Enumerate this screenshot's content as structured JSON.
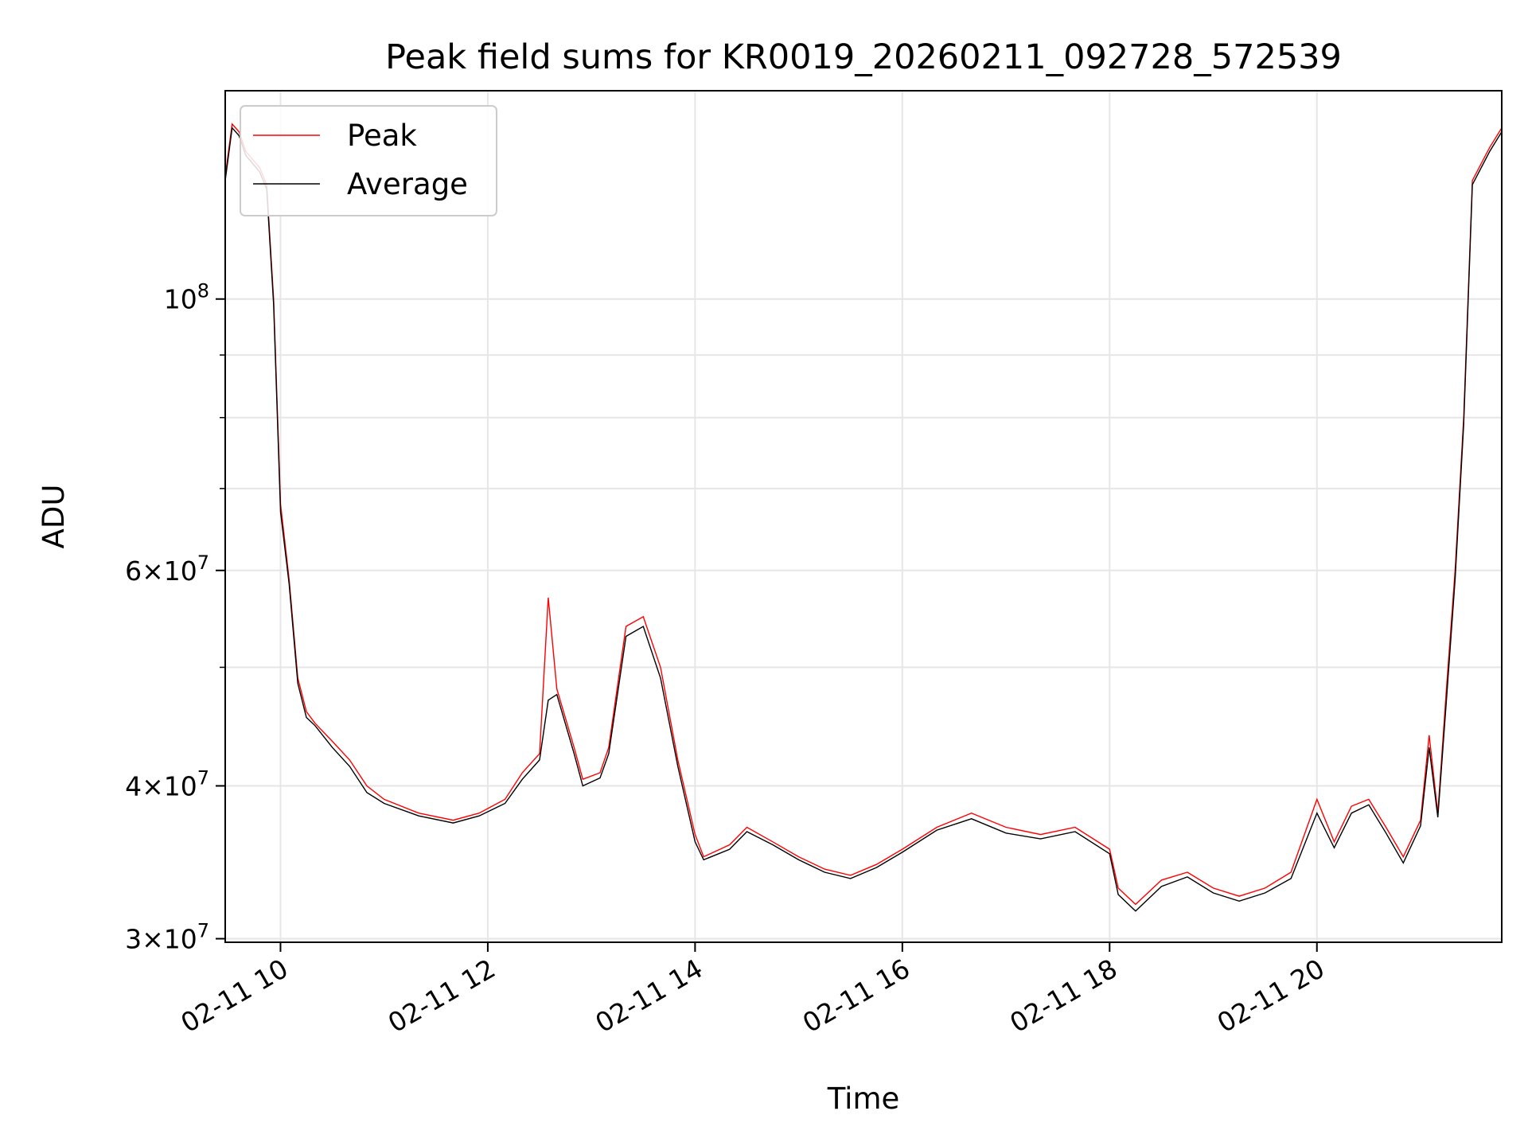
{
  "chart_data": {
    "type": "line",
    "title": "Peak field sums for KR0019_20260211_092728_572539",
    "xlabel": "Time",
    "ylabel": "ADU",
    "yscale": "log",
    "ylim": [
      29800000,
      148000000
    ],
    "xlim": [
      "02-11 09:28",
      "02-11 21:47"
    ],
    "grid": true,
    "legend_position": "top-left",
    "x_ticks": [
      "02-11 10",
      "02-11 12",
      "02-11 14",
      "02-11 16",
      "02-11 18",
      "02-11 20"
    ],
    "y_ticks": [
      {
        "value": 30000000,
        "mantissa": "3",
        "exponent": "7"
      },
      {
        "value": 40000000,
        "mantissa": "4",
        "exponent": "7"
      },
      {
        "value": 60000000,
        "mantissa": "6",
        "exponent": "7"
      },
      {
        "value": 100000000,
        "mantissa": "",
        "exponent": "8"
      }
    ],
    "y_minor_ticks": [
      50000000,
      70000000,
      80000000,
      90000000
    ],
    "series": [
      {
        "name": "Peak",
        "color": "#ff0000"
      },
      {
        "name": "Average",
        "color": "#000000"
      }
    ],
    "x": [
      "09:28",
      "09:32",
      "09:36",
      "09:40",
      "09:44",
      "09:48",
      "09:52",
      "09:56",
      "10:00",
      "10:05",
      "10:10",
      "10:15",
      "10:20",
      "10:30",
      "10:40",
      "10:50",
      "11:00",
      "11:20",
      "11:40",
      "11:55",
      "12:10",
      "12:20",
      "12:30",
      "12:35",
      "12:40",
      "12:50",
      "12:55",
      "13:05",
      "13:10",
      "13:20",
      "13:30",
      "13:40",
      "13:50",
      "14:00",
      "14:05",
      "14:20",
      "14:30",
      "14:45",
      "15:00",
      "15:15",
      "15:30",
      "15:45",
      "16:00",
      "16:20",
      "16:40",
      "17:00",
      "17:20",
      "17:40",
      "18:00",
      "18:05",
      "18:15",
      "18:30",
      "18:45",
      "19:00",
      "19:15",
      "19:30",
      "19:45",
      "20:00",
      "20:10",
      "20:20",
      "20:30",
      "20:40",
      "20:50",
      "21:00",
      "21:05",
      "21:10",
      "21:15",
      "21:20",
      "21:25",
      "21:30",
      "21:40",
      "21:47"
    ],
    "peak_values": [
      126000000,
      139000000,
      137000000,
      132000000,
      130000000,
      128000000,
      124000000,
      100000000,
      68000000,
      59000000,
      49000000,
      46000000,
      45000000,
      43500000,
      42000000,
      40000000,
      39000000,
      38000000,
      37500000,
      38000000,
      39000000,
      41000000,
      42500000,
      57000000,
      48000000,
      43000000,
      40500000,
      41000000,
      43000000,
      54000000,
      55000000,
      50000000,
      42000000,
      36500000,
      35000000,
      35800000,
      37000000,
      36000000,
      35000000,
      34200000,
      33800000,
      34500000,
      35500000,
      37000000,
      38000000,
      37000000,
      36500000,
      37000000,
      35500000,
      33000000,
      32000000,
      33500000,
      34000000,
      33000000,
      32500000,
      33000000,
      34000000,
      39000000,
      36000000,
      38500000,
      39000000,
      37000000,
      35000000,
      37500000,
      44000000,
      38000000,
      48000000,
      60000000,
      80000000,
      125000000,
      133000000,
      138000000
    ],
    "average_values": [
      125000000,
      138000000,
      136000000,
      131000000,
      129000000,
      127000000,
      123000000,
      99000000,
      67000000,
      58500000,
      48500000,
      45500000,
      44800000,
      43000000,
      41500000,
      39500000,
      38700000,
      37800000,
      37300000,
      37800000,
      38700000,
      40500000,
      42000000,
      47000000,
      47500000,
      42500000,
      40000000,
      40600000,
      42500000,
      53000000,
      54000000,
      49000000,
      41500000,
      36000000,
      34800000,
      35500000,
      36700000,
      35800000,
      34800000,
      34000000,
      33600000,
      34300000,
      35300000,
      36800000,
      37600000,
      36600000,
      36200000,
      36700000,
      35200000,
      32600000,
      31600000,
      33100000,
      33700000,
      32700000,
      32200000,
      32700000,
      33600000,
      38000000,
      35600000,
      38000000,
      38600000,
      36600000,
      34600000,
      37100000,
      43000000,
      37700000,
      47000000,
      59000000,
      79000000,
      124000000,
      132000000,
      137000000
    ]
  }
}
